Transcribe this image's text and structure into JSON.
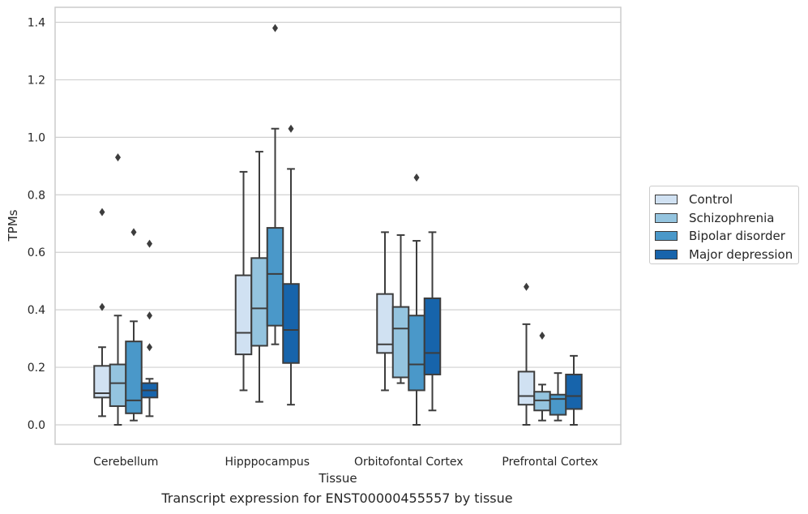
{
  "chart_data": {
    "type": "box",
    "caption": "Transcript expression for ENST00000455557 by tissue",
    "xlabel": "Tissue",
    "ylabel": "TPMs",
    "ylim": [
      -0.065,
      1.45
    ],
    "yticks": [
      "0.0",
      "0.2",
      "0.4",
      "0.6",
      "0.8",
      "1.0",
      "1.2",
      "1.4"
    ],
    "grid": "horizontal",
    "legend_position": "right",
    "categories": [
      "Cerebellum",
      "Hipppocampus",
      "Orbitofontal Cortex",
      "Prefrontal Cortex"
    ],
    "series": [
      {
        "name": "Control",
        "color": "#d0e1f2",
        "boxes": [
          {
            "whislo": 0.03,
            "q1": 0.095,
            "med": 0.11,
            "q3": 0.205,
            "whishi": 0.27,
            "fliers": [
              0.41,
              0.74
            ]
          },
          {
            "whislo": 0.12,
            "q1": 0.245,
            "med": 0.32,
            "q3": 0.52,
            "whishi": 0.88,
            "fliers": []
          },
          {
            "whislo": 0.12,
            "q1": 0.25,
            "med": 0.28,
            "q3": 0.455,
            "whishi": 0.67,
            "fliers": []
          },
          {
            "whislo": 0.0,
            "q1": 0.07,
            "med": 0.1,
            "q3": 0.185,
            "whishi": 0.35,
            "fliers": [
              0.48
            ]
          }
        ]
      },
      {
        "name": "Schizophrenia",
        "color": "#94c4df",
        "boxes": [
          {
            "whislo": 0.0,
            "q1": 0.065,
            "med": 0.145,
            "q3": 0.21,
            "whishi": 0.38,
            "fliers": [
              0.93
            ]
          },
          {
            "whislo": 0.08,
            "q1": 0.275,
            "med": 0.405,
            "q3": 0.58,
            "whishi": 0.95,
            "fliers": []
          },
          {
            "whislo": 0.145,
            "q1": 0.165,
            "med": 0.335,
            "q3": 0.41,
            "whishi": 0.66,
            "fliers": []
          },
          {
            "whislo": 0.015,
            "q1": 0.05,
            "med": 0.085,
            "q3": 0.115,
            "whishi": 0.14,
            "fliers": [
              0.31
            ]
          }
        ]
      },
      {
        "name": "Bipolar disorder",
        "color": "#4a98c9",
        "boxes": [
          {
            "whislo": 0.015,
            "q1": 0.04,
            "med": 0.085,
            "q3": 0.29,
            "whishi": 0.36,
            "fliers": [
              0.67
            ]
          },
          {
            "whislo": 0.28,
            "q1": 0.345,
            "med": 0.525,
            "q3": 0.685,
            "whishi": 1.03,
            "fliers": [
              1.38
            ]
          },
          {
            "whislo": 0.0,
            "q1": 0.12,
            "med": 0.21,
            "q3": 0.38,
            "whishi": 0.64,
            "fliers": [
              0.86
            ]
          },
          {
            "whislo": 0.015,
            "q1": 0.035,
            "med": 0.09,
            "q3": 0.105,
            "whishi": 0.18,
            "fliers": []
          }
        ]
      },
      {
        "name": "Major depression",
        "color": "#1764ab",
        "boxes": [
          {
            "whislo": 0.03,
            "q1": 0.095,
            "med": 0.12,
            "q3": 0.145,
            "whishi": 0.16,
            "fliers": [
              0.27,
              0.38,
              0.63
            ]
          },
          {
            "whislo": 0.07,
            "q1": 0.215,
            "med": 0.33,
            "q3": 0.49,
            "whishi": 0.89,
            "fliers": [
              1.03
            ]
          },
          {
            "whislo": 0.05,
            "q1": 0.175,
            "med": 0.25,
            "q3": 0.44,
            "whishi": 0.67,
            "fliers": []
          },
          {
            "whislo": 0.0,
            "q1": 0.055,
            "med": 0.1,
            "q3": 0.175,
            "whishi": 0.24,
            "fliers": []
          }
        ]
      }
    ]
  }
}
